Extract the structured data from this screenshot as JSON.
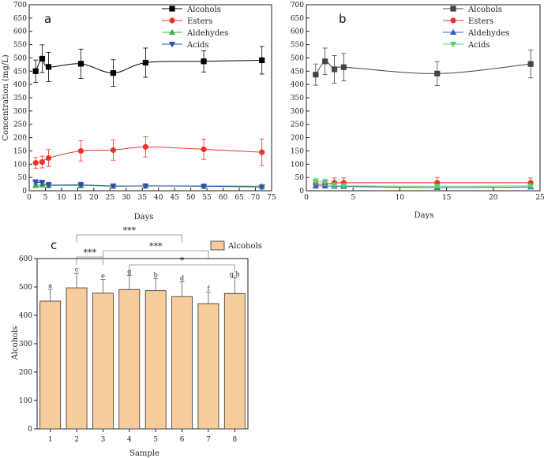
{
  "chart_data": [
    {
      "id": "a",
      "type": "line",
      "panel_label": "a",
      "xlabel": "Days",
      "ylabel": "Concentration (mg/L)",
      "xlim": [
        0,
        75
      ],
      "ylim": [
        0,
        700
      ],
      "xticks": [
        0,
        5,
        10,
        15,
        20,
        25,
        30,
        35,
        40,
        45,
        50,
        55,
        60,
        65,
        70,
        75
      ],
      "yticks": [
        0,
        50,
        100,
        150,
        200,
        250,
        300,
        350,
        400,
        450,
        500,
        550,
        600,
        650,
        700
      ],
      "legend_position": "top-right",
      "series": [
        {
          "name": "Alcohols",
          "color": "#000000",
          "marker": "square",
          "x": [
            2,
            4,
            6,
            16,
            26,
            36,
            54,
            72
          ],
          "y": [
            450,
            497,
            466,
            478,
            443,
            482,
            487,
            491
          ],
          "err": [
            42,
            52,
            55,
            55,
            50,
            55,
            40,
            52
          ]
        },
        {
          "name": "Esters",
          "color": "#e8352c",
          "marker": "circle",
          "x": [
            2,
            4,
            6,
            16,
            26,
            36,
            54,
            72
          ],
          "y": [
            105,
            108,
            123,
            150,
            153,
            165,
            156,
            145
          ],
          "err": [
            20,
            22,
            32,
            38,
            38,
            38,
            38,
            50
          ]
        },
        {
          "name": "Aldehydes",
          "color": "#3cb44b",
          "marker": "triangle-up",
          "x": [
            2,
            4,
            6,
            16,
            26,
            36,
            54,
            72
          ],
          "y": [
            20,
            22,
            20,
            20,
            17,
            18,
            18,
            17
          ],
          "err": [
            8,
            8,
            8,
            8,
            6,
            6,
            6,
            6
          ]
        },
        {
          "name": "Acids",
          "color": "#3050a8",
          "marker": "triangle-down",
          "x": [
            2,
            4,
            6,
            16,
            26,
            36,
            54,
            72
          ],
          "y": [
            32,
            30,
            22,
            22,
            18,
            18,
            17,
            14
          ],
          "err": [
            10,
            10,
            10,
            10,
            8,
            8,
            8,
            8
          ]
        }
      ]
    },
    {
      "id": "b",
      "type": "line",
      "panel_label": "b",
      "xlabel": "Days",
      "ylabel": "",
      "xlim": [
        0,
        25
      ],
      "ylim": [
        0,
        700
      ],
      "xticks": [
        0,
        5,
        10,
        15,
        20,
        25
      ],
      "yticks": [
        0,
        50,
        100,
        150,
        200,
        250,
        300,
        350,
        400,
        450,
        500,
        550,
        600,
        650,
        700
      ],
      "legend_position": "top-right",
      "series": [
        {
          "name": "Alcohols",
          "color": "#444444",
          "marker": "square",
          "x": [
            1,
            2,
            3,
            4,
            14,
            24
          ],
          "y": [
            437,
            487,
            457,
            465,
            441,
            477
          ],
          "err": [
            40,
            50,
            52,
            52,
            45,
            52
          ]
        },
        {
          "name": "Esters",
          "color": "#e8352c",
          "marker": "circle",
          "x": [
            1,
            2,
            3,
            4,
            14,
            24
          ],
          "y": [
            25,
            25,
            30,
            30,
            30,
            30
          ],
          "err": [
            15,
            15,
            18,
            18,
            20,
            18
          ]
        },
        {
          "name": "Aldehydes",
          "color": "#3060c8",
          "marker": "triangle-up",
          "x": [
            1,
            2,
            3,
            4,
            14,
            24
          ],
          "y": [
            18,
            18,
            17,
            16,
            12,
            14
          ],
          "err": [
            8,
            8,
            8,
            8,
            6,
            6
          ]
        },
        {
          "name": "Acids",
          "color": "#52d26a",
          "marker": "triangle-down",
          "x": [
            1,
            2,
            3,
            4,
            14,
            24
          ],
          "y": [
            35,
            32,
            20,
            18,
            17,
            18
          ],
          "err": [
            12,
            12,
            10,
            10,
            8,
            8
          ]
        }
      ]
    },
    {
      "id": "c",
      "type": "bar",
      "panel_label": "c",
      "xlabel": "Sample",
      "ylabel": "Alcohols",
      "ylim": [
        0,
        600
      ],
      "yticks": [
        0,
        100,
        200,
        300,
        400,
        500,
        600
      ],
      "legend_position": "top-right",
      "categories": [
        "1",
        "2",
        "3",
        "4",
        "5",
        "6",
        "7",
        "8"
      ],
      "series": [
        {
          "name": "Alcohols",
          "color": "#f6cc9c",
          "values": [
            450,
            497,
            478,
            491,
            487,
            466,
            441,
            477
          ],
          "err": [
            42,
            52,
            48,
            50,
            42,
            52,
            40,
            55
          ]
        }
      ],
      "letters": [
        "a",
        "c",
        "e",
        "g",
        "b",
        "d",
        "f",
        "g,h"
      ],
      "significance": [
        {
          "from": "2",
          "to": "6",
          "label": "***"
        },
        {
          "from": "2",
          "to": "3",
          "label": "***"
        },
        {
          "from": "3",
          "to": "7",
          "label": "***"
        },
        {
          "from": "4",
          "to": "8",
          "label": "*"
        }
      ]
    }
  ]
}
